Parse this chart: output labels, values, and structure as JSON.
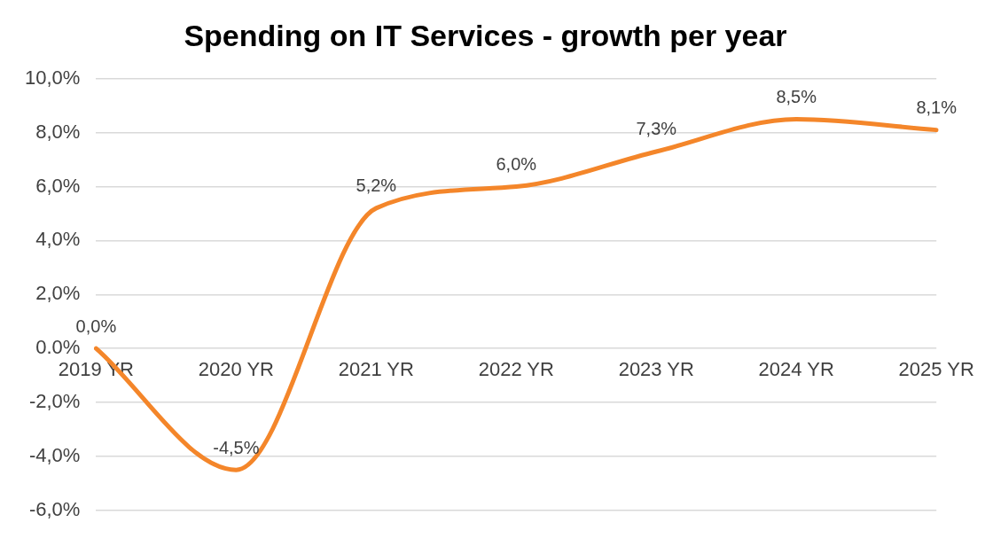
{
  "chart_data": {
    "type": "line",
    "title": "Spending on IT Services - growth per year",
    "categories": [
      "2019 YR",
      "2020 YR",
      "2021 YR",
      "2022 YR",
      "2023 YR",
      "2024 YR",
      "2025 YR"
    ],
    "series": [
      {
        "color": "#f4862a",
        "values": [
          0,
          -4.5,
          5.2,
          6.0,
          7.3,
          8.5,
          8.1
        ],
        "value_labels": [
          "0,0%",
          "-4,5%",
          "5,2%",
          "6,0%",
          "7,3%",
          "8,5%",
          "8,1%"
        ]
      }
    ],
    "ylim": [
      -6,
      10
    ],
    "yticks": [
      {
        "value": -6,
        "label": "-6,0%"
      },
      {
        "value": -4,
        "label": "-4,0%"
      },
      {
        "value": -2,
        "label": "-2,0%"
      },
      {
        "value": 0,
        "label": "0.0%"
      },
      {
        "value": 2,
        "label": "2,0%"
      },
      {
        "value": 4,
        "label": "4,0%"
      },
      {
        "value": 6,
        "label": "6,0%"
      },
      {
        "value": 8,
        "label": "8,0%"
      },
      {
        "value": 10,
        "label": "10,0%"
      }
    ],
    "grid": "y",
    "legend": false,
    "marker": "none",
    "line_style": "solid"
  }
}
